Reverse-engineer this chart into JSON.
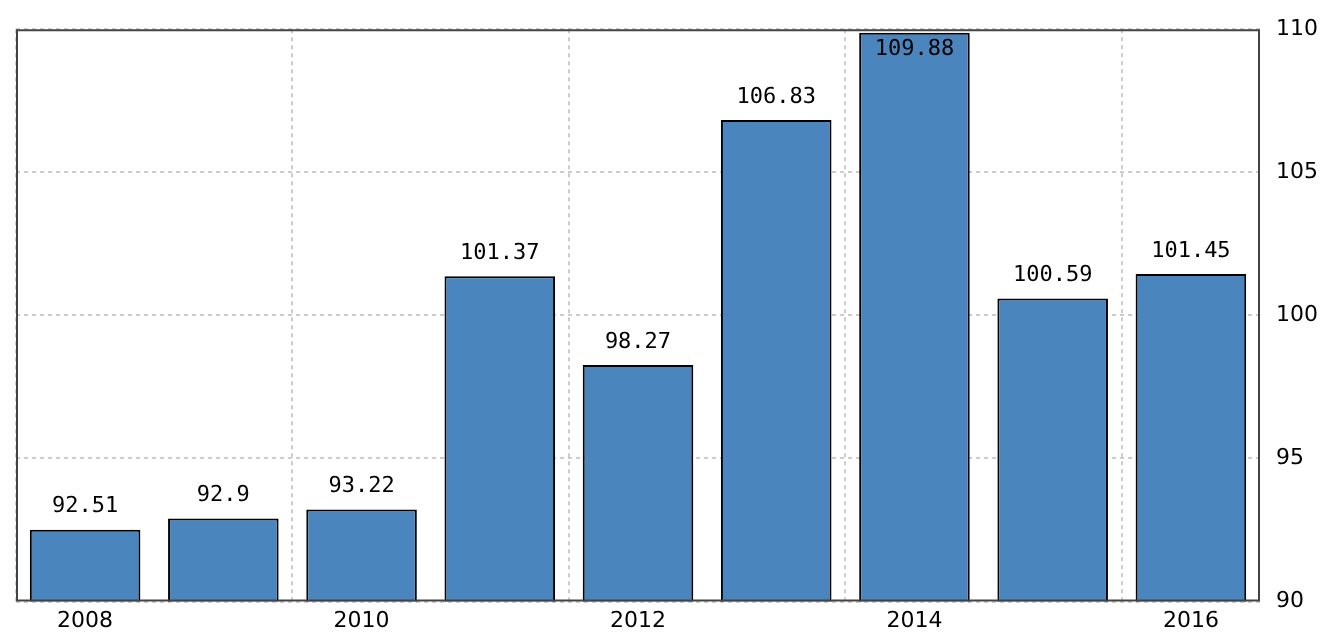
{
  "chart_data": {
    "type": "bar",
    "categories": [
      "2008",
      null,
      "2010",
      null,
      "2012",
      null,
      "2014",
      null,
      "2016"
    ],
    "values": [
      92.51,
      92.9,
      93.22,
      101.37,
      98.27,
      106.83,
      109.88,
      100.59,
      101.45
    ],
    "color": "#4a86bd",
    "ylim": [
      90,
      110
    ],
    "yticks": [
      90,
      95,
      100,
      105,
      110
    ],
    "grid": true,
    "data_labels": true,
    "legend": false
  }
}
